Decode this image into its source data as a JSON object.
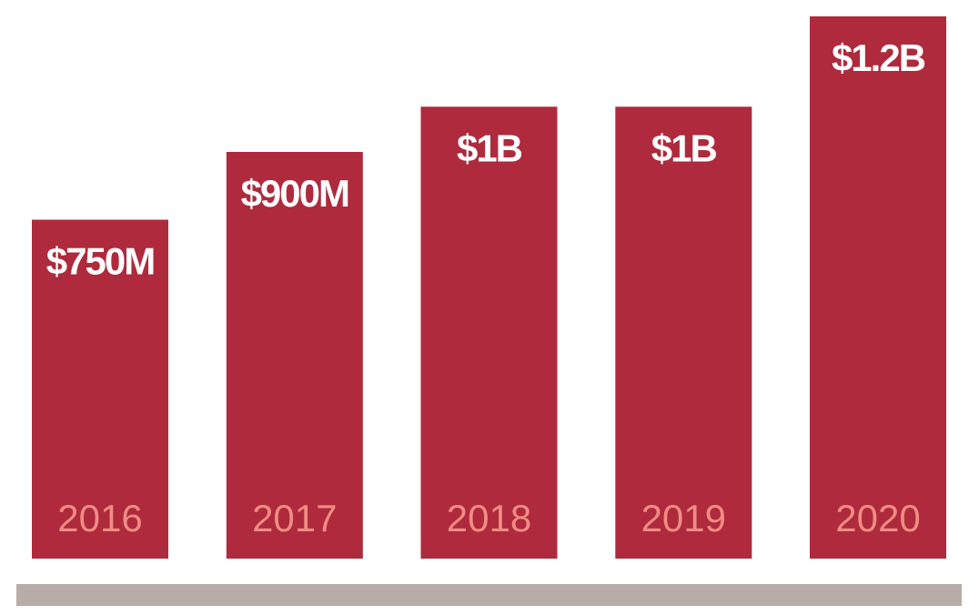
{
  "chart_data": {
    "type": "bar",
    "categories": [
      "2016",
      "2017",
      "2018",
      "2019",
      "2020"
    ],
    "values": [
      750,
      900,
      1000,
      1000,
      1200
    ],
    "value_unit": "$M",
    "data_labels": [
      "$750M",
      "$900M",
      "$1B",
      "$1B",
      "$1.2B"
    ],
    "title": "",
    "xlabel": "",
    "ylabel": "",
    "ylim": [
      0,
      1200
    ],
    "grid": false,
    "legend": "none",
    "category_labels_position": "inside-bar-bottom"
  },
  "colors": {
    "bar": "#ae2a3c",
    "value_label": "#ffffff",
    "category_label": "#f08c84",
    "baseline": "#b7aca7",
    "background": "#ffffff"
  }
}
